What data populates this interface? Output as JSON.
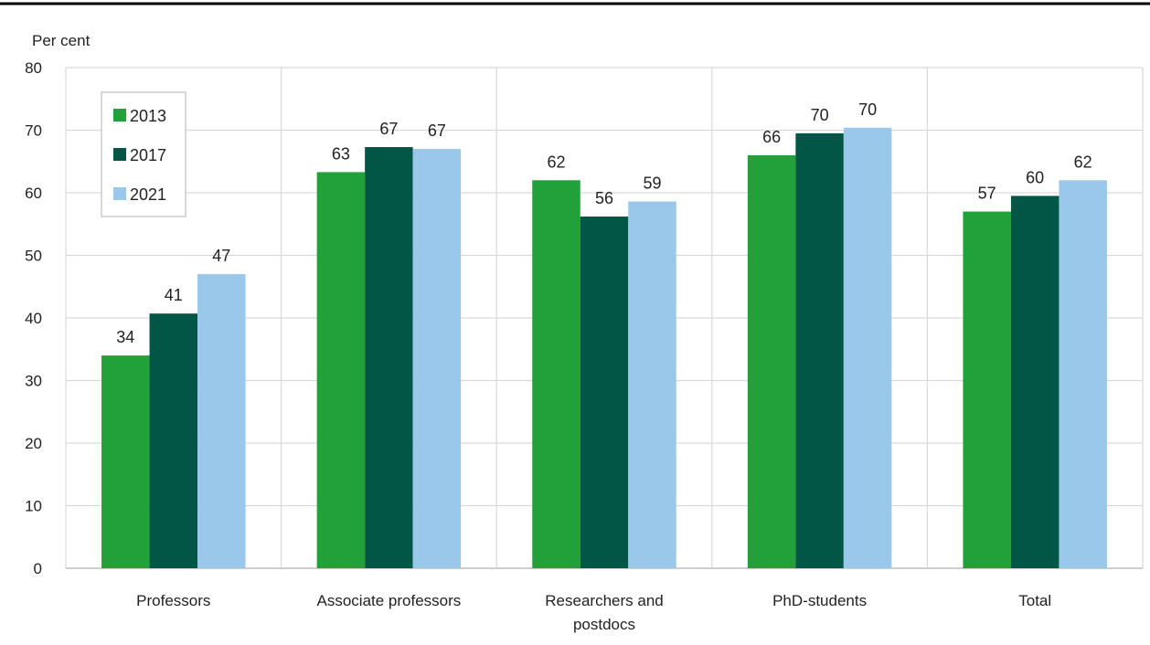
{
  "chart_data": {
    "type": "bar",
    "ylabel": "Per cent",
    "ylim": [
      0,
      80
    ],
    "yticks": [
      0,
      10,
      20,
      30,
      40,
      50,
      60,
      70,
      80
    ],
    "grid": true,
    "legend_position": "top-left",
    "categories": [
      [
        "Professors"
      ],
      [
        "Associate professors"
      ],
      [
        "Researchers and",
        "postdocs"
      ],
      [
        "PhD-students"
      ],
      [
        "Total"
      ]
    ],
    "series": [
      {
        "name": "2013",
        "color": "#22a03a",
        "values": [
          34,
          63.3,
          62,
          66,
          57
        ],
        "labels": [
          "34",
          "63",
          "62",
          "66",
          "57"
        ]
      },
      {
        "name": "2017",
        "color": "#015646",
        "values": [
          40.7,
          67.3,
          56.2,
          69.5,
          59.5
        ],
        "labels": [
          "41",
          "67",
          "56",
          "70",
          "60"
        ]
      },
      {
        "name": "2021",
        "color": "#99c8ea",
        "values": [
          47,
          67,
          58.6,
          70.4,
          62
        ],
        "labels": [
          "47",
          "67",
          "59",
          "70",
          "62"
        ]
      }
    ]
  }
}
